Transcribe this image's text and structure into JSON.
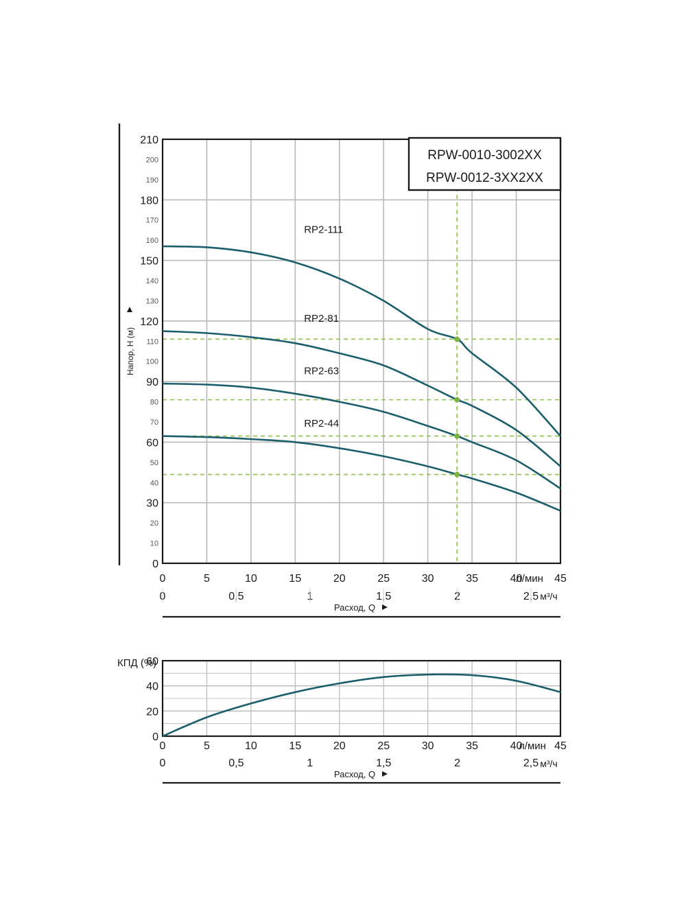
{
  "colors": {
    "curve": "#1b5e6b",
    "grid": "#b8b8b8",
    "frame": "#1a1a1a",
    "guide": "#8bc34a",
    "point": "#7cb342"
  },
  "chart_data": [
    {
      "type": "line",
      "model_box": [
        "RPW-0010-3002XX",
        "RPW-0012-3XX2XX"
      ],
      "ylabel": "Напор, Н (м)",
      "xlabel": "Расход, Q",
      "x_unit_primary": "л/мин",
      "x_unit_secondary": "м³/ч",
      "xlim": [
        0,
        45
      ],
      "ylim": [
        0,
        210
      ],
      "x_ticks": [
        0,
        5,
        10,
        15,
        20,
        25,
        30,
        35,
        40,
        45
      ],
      "x_tick_labels": [
        "0",
        "5",
        "10",
        "15",
        "20",
        "25",
        "30",
        "35",
        "40",
        "45"
      ],
      "x2_ticks": [
        0,
        0.5,
        1,
        1.5,
        2,
        2.5
      ],
      "x2_tick_labels": [
        "0",
        "0,5",
        "1",
        "1,5",
        "2",
        "2,5"
      ],
      "y_major_ticks": [
        0,
        30,
        60,
        90,
        120,
        150,
        180,
        210
      ],
      "y_major_labels": [
        "0",
        "30",
        "60",
        "90",
        "120",
        "150",
        "180",
        "210"
      ],
      "y_minor_ticks": [
        10,
        20,
        40,
        50,
        70,
        80,
        100,
        110,
        130,
        140,
        160,
        170,
        190,
        200
      ],
      "y_minor_labels": [
        "10",
        "20",
        "40",
        "50",
        "70",
        "80",
        "100",
        "110",
        "130",
        "140",
        "160",
        "170",
        "190",
        "200"
      ],
      "grid": true,
      "series": [
        {
          "name": "RP2-111",
          "x": [
            0,
            5,
            10,
            15,
            20,
            25,
            30,
            33.3,
            35,
            40,
            45
          ],
          "values": [
            157,
            156.5,
            154,
            149,
            141,
            130,
            116,
            111,
            104,
            87,
            63
          ]
        },
        {
          "name": "RP2-81",
          "x": [
            0,
            5,
            10,
            15,
            20,
            25,
            30,
            33.3,
            35,
            40,
            45
          ],
          "values": [
            115,
            114,
            112,
            109,
            104,
            98,
            88,
            81,
            78,
            66,
            48
          ]
        },
        {
          "name": "RP2-63",
          "x": [
            0,
            5,
            10,
            15,
            20,
            25,
            30,
            33.3,
            35,
            40,
            45
          ],
          "values": [
            89,
            88.5,
            87,
            84,
            80,
            75,
            68,
            63,
            60,
            51,
            37
          ]
        },
        {
          "name": "RP2-44",
          "x": [
            0,
            5,
            10,
            15,
            20,
            25,
            30,
            33.3,
            35,
            40,
            45
          ],
          "values": [
            63,
            62.5,
            61.5,
            60,
            57,
            53,
            48,
            44,
            42,
            35,
            26
          ]
        }
      ],
      "duty_point": {
        "x": 33.3,
        "values": [
          111,
          81,
          63,
          44
        ]
      }
    },
    {
      "type": "line",
      "ylabel": "КПД (%)",
      "xlabel": "Расход, Q",
      "x_unit_primary": "л/мин",
      "x_unit_secondary": "м³/ч",
      "xlim": [
        0,
        45
      ],
      "ylim": [
        0,
        60
      ],
      "x_ticks": [
        0,
        5,
        10,
        15,
        20,
        25,
        30,
        35,
        40,
        45
      ],
      "x_tick_labels": [
        "0",
        "5",
        "10",
        "15",
        "20",
        "25",
        "30",
        "35",
        "40",
        "45"
      ],
      "x2_ticks": [
        0,
        0.5,
        1,
        1.5,
        2,
        2.5
      ],
      "x2_tick_labels": [
        "0",
        "0,5",
        "1",
        "1,5",
        "2",
        "2,5"
      ],
      "y_ticks": [
        0,
        20,
        40,
        60
      ],
      "y_tick_labels": [
        "0",
        "20",
        "40",
        "60"
      ],
      "grid": true,
      "series": [
        {
          "x": [
            0,
            5,
            10,
            15,
            20,
            25,
            30,
            35,
            40,
            45
          ],
          "values": [
            0,
            15,
            26,
            35,
            42,
            47,
            49,
            48.5,
            44,
            35
          ]
        }
      ]
    }
  ]
}
